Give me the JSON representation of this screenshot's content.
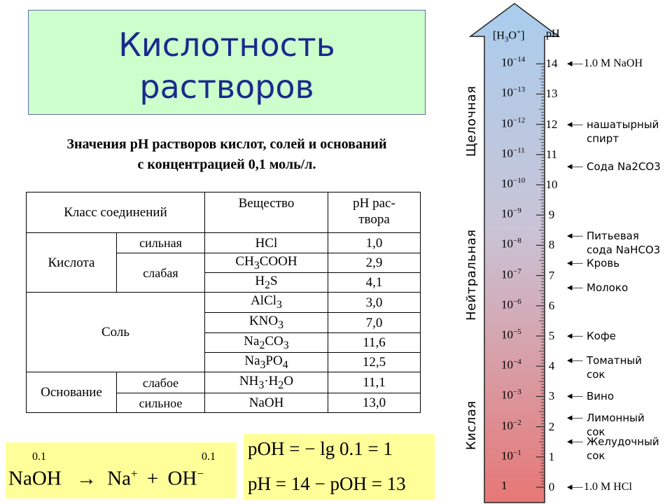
{
  "title": {
    "line1": "Кислотность",
    "line2": "растворов"
  },
  "caption": {
    "line1": "Значения pH растворов кислот, солей и оснований",
    "line2": "с концентрацией 0,1 моль/л."
  },
  "table": {
    "headers": {
      "class": "Класс соединений",
      "substance": "Вещество",
      "ph": "pH рас-",
      "ph2": "твора"
    },
    "classes": {
      "acid": "Кислота",
      "salt": "Соль",
      "base": "Основание"
    },
    "strength": {
      "acid_strong": "сильная",
      "acid_weak": "слабая",
      "base_weak": "слабое",
      "base_strong": "сильное"
    },
    "rows": [
      {
        "f1": "HCl",
        "ph": "1,0"
      },
      {
        "f1": "CH",
        "s1": "3",
        "f2": "COOH",
        "ph": "2,9"
      },
      {
        "f1": "H",
        "s1": "2",
        "f2": "S",
        "ph": "4,1"
      },
      {
        "f1": "AlCl",
        "s1": "3",
        "f2": "",
        "ph": "3,0"
      },
      {
        "f1": "KNO",
        "s1": "3",
        "f2": "",
        "ph": "7,0"
      },
      {
        "f1": "Na",
        "s1": "2",
        "f2": "CO",
        "s2": "3",
        "ph": "11,6"
      },
      {
        "f1": "Na",
        "s1": "3",
        "f2": "PO",
        "s2": "4",
        "ph": "12,5"
      },
      {
        "f1": "NH",
        "s1": "3",
        "f2": "·H",
        "s2": "2",
        "f3": "O",
        "ph": "11,1"
      },
      {
        "f1": "NaOH",
        "ph": "13,0"
      }
    ]
  },
  "equations": {
    "dissociation": {
      "c1": "0.1",
      "c2": "0.1",
      "left": "NaOH",
      "arrow": "→",
      "na": "Na",
      "plus_sup": "+",
      "plus": "+",
      "oh": "OH",
      "minus_sup": "−"
    },
    "poh": "pOH = − lg 0.1 = 1",
    "ph": "pH = 14 − pOH = 13"
  },
  "scale": {
    "header_conc": "[H3O+]",
    "header_conc_parts": {
      "a": "[H",
      "b": "3",
      "c": "O",
      "d": "+",
      "e": "]"
    },
    "header_ph": "pH",
    "regions": {
      "basic": "Щелочная",
      "neutral": "Нейтральная",
      "acidic": "Кислая"
    },
    "rows": [
      {
        "ph": 14,
        "conc": "10",
        "exp": "−14"
      },
      {
        "ph": 13,
        "conc": "10",
        "exp": "−13"
      },
      {
        "ph": 12,
        "conc": "10",
        "exp": "−12"
      },
      {
        "ph": 11,
        "conc": "10",
        "exp": "−11"
      },
      {
        "ph": 10,
        "conc": "10",
        "exp": "−10"
      },
      {
        "ph": 9,
        "conc": "10",
        "exp": "−9"
      },
      {
        "ph": 8,
        "conc": "10",
        "exp": "−8"
      },
      {
        "ph": 7,
        "conc": "10",
        "exp": "−7"
      },
      {
        "ph": 6,
        "conc": "10",
        "exp": "−6"
      },
      {
        "ph": 5,
        "conc": "10",
        "exp": "−5"
      },
      {
        "ph": 4,
        "conc": "10",
        "exp": "−4"
      },
      {
        "ph": 3,
        "conc": "10",
        "exp": "−3"
      },
      {
        "ph": 2,
        "conc": "10",
        "exp": "−2"
      },
      {
        "ph": 1,
        "conc": "10",
        "exp": "−1"
      },
      {
        "ph": 0,
        "conc": "1",
        "exp": ""
      }
    ],
    "substances": [
      {
        "ph": 14,
        "lines": [
          "1.0 M NaOH"
        ],
        "serif": true
      },
      {
        "ph": 12,
        "lines": [
          "нашатырный",
          "спирт"
        ]
      },
      {
        "ph": 10.6,
        "lines": [
          "Сода Na2CO3"
        ]
      },
      {
        "ph": 8.3,
        "lines": [
          "Питьевая",
          "сода NaHCO3"
        ]
      },
      {
        "ph": 7.4,
        "lines": [
          "Кровь"
        ]
      },
      {
        "ph": 6.6,
        "lines": [
          "Молоко"
        ]
      },
      {
        "ph": 5,
        "lines": [
          "Кофе"
        ]
      },
      {
        "ph": 4.2,
        "lines": [
          "Томатный",
          "сок"
        ]
      },
      {
        "ph": 3,
        "lines": [
          "Вино"
        ]
      },
      {
        "ph": 2.3,
        "lines": [
          "Лимонный",
          "сок"
        ]
      },
      {
        "ph": 1.5,
        "lines": [
          "Желудочный",
          "сок"
        ]
      },
      {
        "ph": 0,
        "lines": [
          "1.0 M HCl"
        ],
        "serif": true
      }
    ],
    "colors": {
      "top": "#a9cdee",
      "mid": "#c9c4d6",
      "bottom": "#e77775"
    }
  }
}
